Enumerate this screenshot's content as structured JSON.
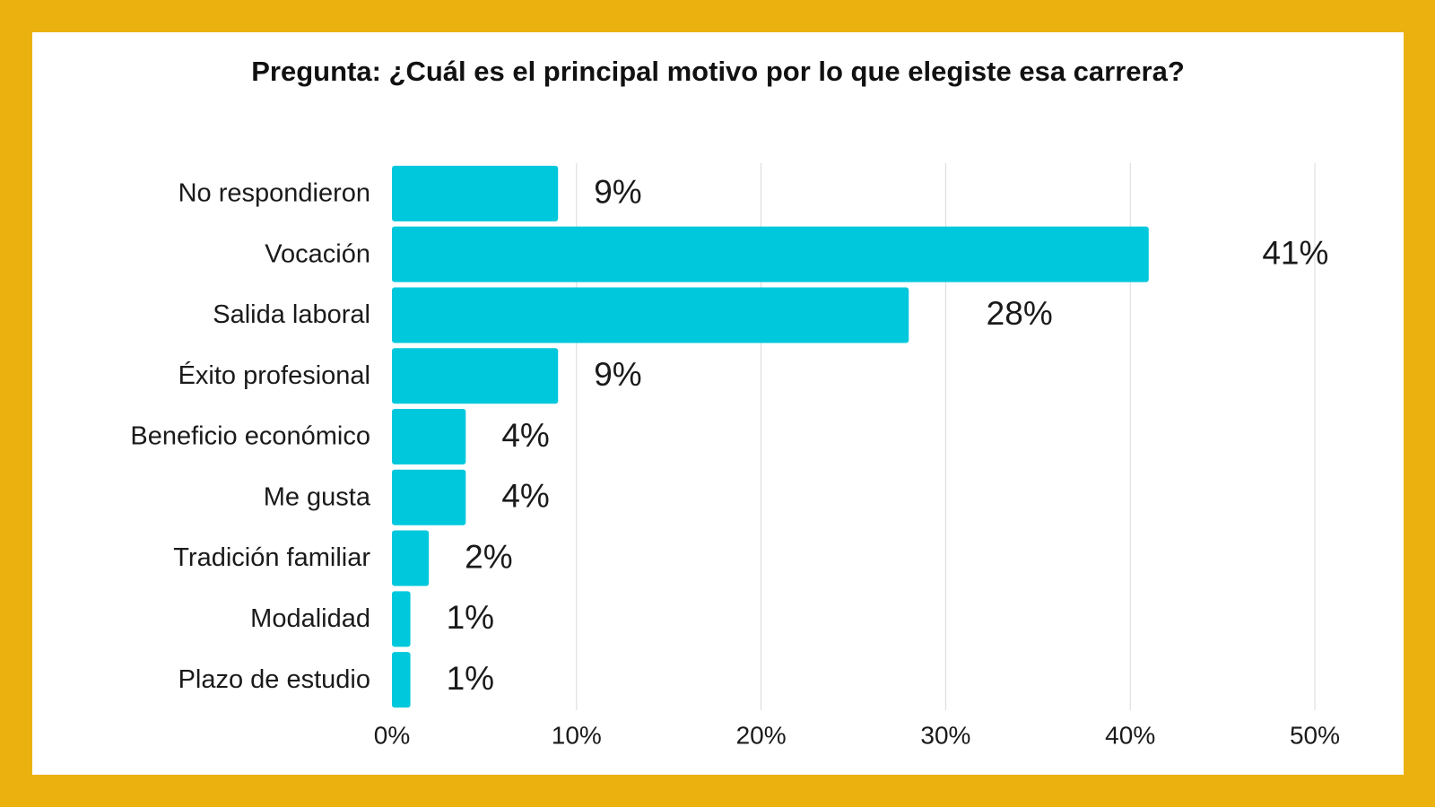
{
  "colors": {
    "frame": "#EBB20F",
    "bar": "#00C8DC",
    "grid": "#D9D9D9",
    "background": "#FFFFFF"
  },
  "chart_data": {
    "type": "bar",
    "orientation": "horizontal",
    "title": "Pregunta: ¿Cuál es el principal motivo por lo que elegiste esa carrera?",
    "categories": [
      "No respondieron",
      "Vocación",
      "Salida laboral",
      "Éxito profesional",
      "Beneficio económico",
      "Me gusta",
      "Tradición familiar",
      "Modalidad",
      "Plazo de estudio"
    ],
    "values": [
      9,
      41,
      28,
      9,
      4,
      4,
      2,
      1,
      1
    ],
    "data_labels": [
      "9%",
      "41%",
      "28%",
      "9%",
      "4%",
      "4%",
      "2%",
      "1%",
      "1%"
    ],
    "xlim": [
      0,
      50
    ],
    "x_ticks": [
      0,
      10,
      20,
      30,
      40,
      50
    ],
    "x_tick_labels": [
      "0%",
      "10%",
      "20%",
      "30%",
      "40%",
      "50%"
    ],
    "xlabel": "",
    "ylabel": "",
    "grid": "vertical",
    "legend": "none"
  }
}
